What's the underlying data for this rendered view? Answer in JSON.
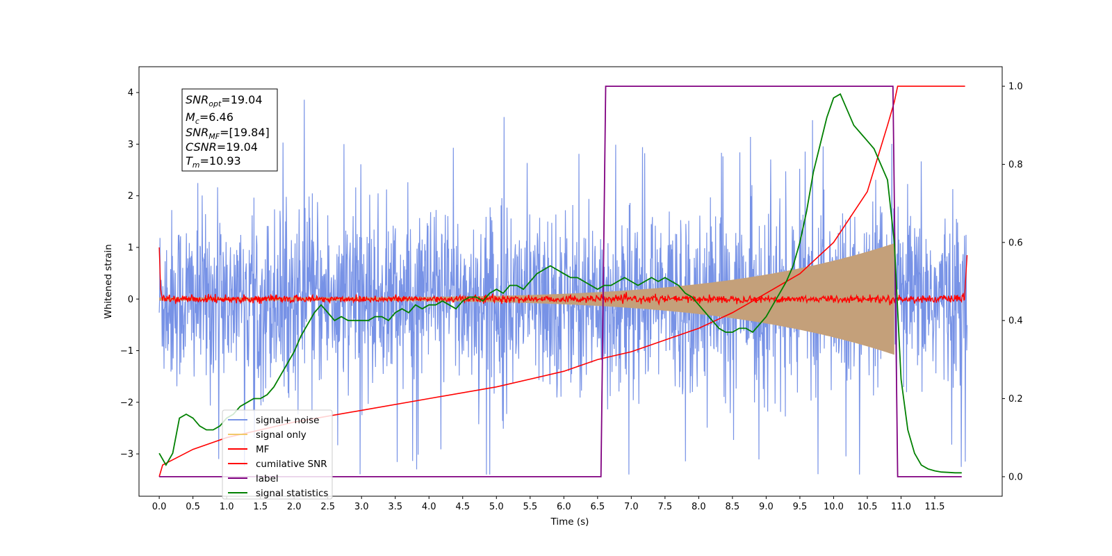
{
  "chart_data": {
    "type": "line",
    "title": "",
    "xlabel": "Time (s)",
    "ylabel": "Whitened strain",
    "xlim": [
      -0.3,
      12.5
    ],
    "ylim": [
      -3.82,
      4.5
    ],
    "y2lim": [
      -0.05,
      1.05
    ],
    "xticks": [
      "0.0",
      "0.5",
      "1.0",
      "1.5",
      "2.0",
      "2.5",
      "3.0",
      "3.5",
      "4.0",
      "4.5",
      "5.0",
      "5.5",
      "6.0",
      "6.5",
      "7.0",
      "7.5",
      "8.0",
      "8.5",
      "9.0",
      "9.5",
      "10.0",
      "10.5",
      "11.0",
      "11.5"
    ],
    "yticks": [
      "4",
      "3",
      "2",
      "1",
      "0",
      "−1",
      "−2",
      "−3"
    ],
    "y2ticks": [
      "1.0",
      "0.8",
      "0.6",
      "0.4",
      "0.2",
      "0.0"
    ],
    "annotation": {
      "snr_opt_base": "SNR",
      "snr_opt_sub": "opt",
      "snr_opt_val": "=19.04",
      "mc_base": "M",
      "mc_sub": "c",
      "mc_val": "=6.46",
      "snr_mf_base": "SNR",
      "snr_mf_sub": "MF",
      "snr_mf_val": "=[19.84]",
      "csnr_base": "CSNR",
      "csnr_val": "=19.04",
      "tm_base": "T",
      "tm_sub": "m",
      "tm_val": "=10.93"
    },
    "legend": {
      "position": "lower-left",
      "entries": [
        {
          "label": "signal+ noise",
          "color": "#7792e6"
        },
        {
          "label": "signal only",
          "color": "#f2c96b"
        },
        {
          "label": "MF",
          "color": "#ff0000"
        },
        {
          "label": "cumilative SNR",
          "color": "#ff0000"
        },
        {
          "label": "label",
          "color": "#800080"
        },
        {
          "label": "signal statistics",
          "color": "#008000"
        }
      ]
    },
    "series": [
      {
        "name": "signal+ noise",
        "axis": "left",
        "color": "#7792e6",
        "description_range": [
          -3.4,
          4.2
        ]
      },
      {
        "name": "signal only",
        "axis": "left",
        "color": "#c4a07a",
        "envelope": {
          "t_start": 0,
          "t_end": 10.9,
          "amp_end": 1.05
        }
      },
      {
        "name": "MF",
        "axis": "left",
        "color": "#ff0000",
        "start_value": 1.0,
        "end_value": 0.85
      },
      {
        "name": "cumilative SNR",
        "axis": "right",
        "x": [
          0,
          0.05,
          0.5,
          1,
          2,
          3,
          4,
          5,
          6,
          6.5,
          7,
          7.5,
          8,
          8.5,
          9,
          9.5,
          10,
          10.5,
          10.8,
          10.9,
          10.95,
          11.95
        ],
        "y": [
          0,
          0.03,
          0.07,
          0.1,
          0.14,
          0.17,
          0.2,
          0.23,
          0.27,
          0.3,
          0.32,
          0.35,
          0.38,
          0.42,
          0.47,
          0.52,
          0.6,
          0.73,
          0.9,
          0.96,
          1.0,
          1.0
        ]
      },
      {
        "name": "label",
        "axis": "right",
        "x": [
          0,
          6.55,
          6.62,
          10.88,
          10.95,
          11.9
        ],
        "y": [
          0,
          0,
          1,
          1,
          0,
          0
        ]
      },
      {
        "name": "signal statistics",
        "axis": "right",
        "x": [
          0,
          0.1,
          0.2,
          0.3,
          0.4,
          0.5,
          0.6,
          0.7,
          0.8,
          0.9,
          1.0,
          1.1,
          1.2,
          1.3,
          1.4,
          1.5,
          1.6,
          1.7,
          1.8,
          1.9,
          2.0,
          2.1,
          2.2,
          2.3,
          2.4,
          2.5,
          2.6,
          2.7,
          2.8,
          2.9,
          3.0,
          3.1,
          3.2,
          3.3,
          3.4,
          3.5,
          3.6,
          3.7,
          3.8,
          3.9,
          4.0,
          4.1,
          4.2,
          4.3,
          4.4,
          4.5,
          4.6,
          4.7,
          4.8,
          4.9,
          5.0,
          5.1,
          5.2,
          5.3,
          5.4,
          5.5,
          5.6,
          5.7,
          5.8,
          5.9,
          6.0,
          6.1,
          6.2,
          6.3,
          6.4,
          6.5,
          6.6,
          6.7,
          6.8,
          6.9,
          7.0,
          7.1,
          7.2,
          7.3,
          7.4,
          7.5,
          7.6,
          7.7,
          7.8,
          7.9,
          8.0,
          8.1,
          8.2,
          8.3,
          8.4,
          8.5,
          8.6,
          8.7,
          8.8,
          8.9,
          9.0,
          9.1,
          9.2,
          9.3,
          9.4,
          9.5,
          9.6,
          9.7,
          9.8,
          9.9,
          10.0,
          10.1,
          10.2,
          10.3,
          10.4,
          10.5,
          10.6,
          10.7,
          10.8,
          10.9,
          11.0,
          11.1,
          11.2,
          11.3,
          11.4,
          11.5,
          11.6,
          11.7,
          11.8,
          11.9
        ],
        "y": [
          0.06,
          0.03,
          0.06,
          0.15,
          0.16,
          0.15,
          0.13,
          0.12,
          0.12,
          0.13,
          0.15,
          0.16,
          0.18,
          0.19,
          0.2,
          0.2,
          0.21,
          0.23,
          0.26,
          0.29,
          0.32,
          0.36,
          0.39,
          0.42,
          0.44,
          0.42,
          0.4,
          0.41,
          0.4,
          0.4,
          0.4,
          0.4,
          0.41,
          0.41,
          0.4,
          0.42,
          0.43,
          0.42,
          0.44,
          0.43,
          0.44,
          0.44,
          0.45,
          0.44,
          0.43,
          0.45,
          0.46,
          0.46,
          0.45,
          0.47,
          0.48,
          0.47,
          0.49,
          0.49,
          0.48,
          0.5,
          0.52,
          0.53,
          0.54,
          0.53,
          0.52,
          0.51,
          0.51,
          0.5,
          0.49,
          0.48,
          0.49,
          0.49,
          0.5,
          0.51,
          0.5,
          0.49,
          0.5,
          0.51,
          0.5,
          0.51,
          0.5,
          0.49,
          0.47,
          0.46,
          0.44,
          0.42,
          0.4,
          0.38,
          0.37,
          0.37,
          0.38,
          0.38,
          0.37,
          0.39,
          0.41,
          0.44,
          0.47,
          0.5,
          0.54,
          0.6,
          0.68,
          0.78,
          0.85,
          0.92,
          0.97,
          0.98,
          0.94,
          0.9,
          0.88,
          0.86,
          0.84,
          0.8,
          0.76,
          0.6,
          0.25,
          0.12,
          0.06,
          0.03,
          0.02,
          0.015,
          0.012,
          0.011,
          0.01,
          0.01
        ]
      }
    ]
  }
}
